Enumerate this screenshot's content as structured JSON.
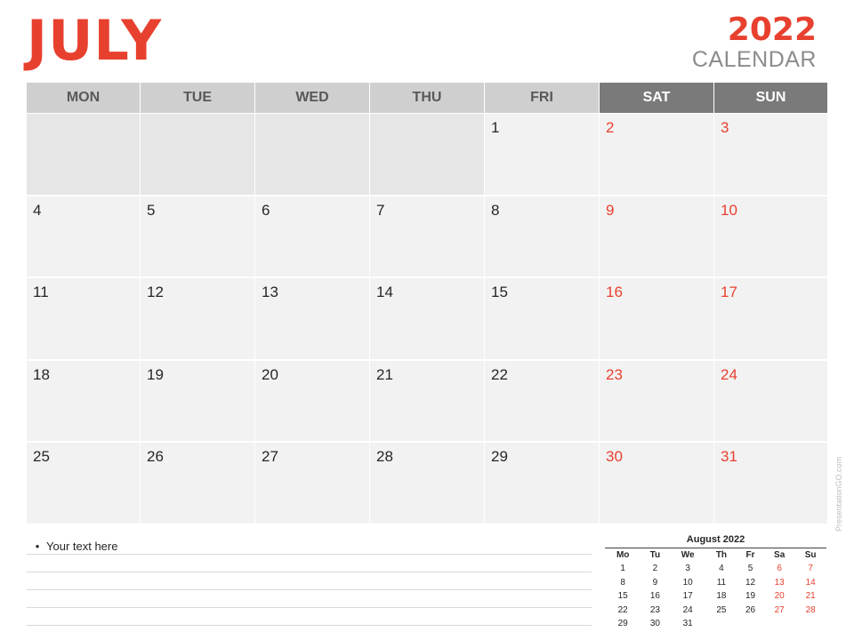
{
  "header": {
    "month": "JULY",
    "year": "2022",
    "subtitle": "CALENDAR"
  },
  "weekdays": [
    "MON",
    "TUE",
    "WED",
    "THU",
    "FRI",
    "SAT",
    "SUN"
  ],
  "weeks": [
    [
      "",
      "",
      "",
      "",
      "1",
      "2",
      "3"
    ],
    [
      "4",
      "5",
      "6",
      "7",
      "8",
      "9",
      "10"
    ],
    [
      "11",
      "12",
      "13",
      "14",
      "15",
      "16",
      "17"
    ],
    [
      "18",
      "19",
      "20",
      "21",
      "22",
      "23",
      "24"
    ],
    [
      "25",
      "26",
      "27",
      "28",
      "29",
      "30",
      "31"
    ]
  ],
  "notes": {
    "first_line": "Your text here"
  },
  "mini_calendar": {
    "title": "August 2022",
    "weekdays": [
      "Mo",
      "Tu",
      "We",
      "Th",
      "Fr",
      "Sa",
      "Su"
    ],
    "weeks": [
      [
        "1",
        "2",
        "3",
        "4",
        "5",
        "6",
        "7"
      ],
      [
        "8",
        "9",
        "10",
        "11",
        "12",
        "13",
        "14"
      ],
      [
        "15",
        "16",
        "17",
        "18",
        "19",
        "20",
        "21"
      ],
      [
        "22",
        "23",
        "24",
        "25",
        "26",
        "27",
        "28"
      ],
      [
        "29",
        "30",
        "31",
        "",
        "",
        "",
        ""
      ]
    ]
  },
  "watermark": "PresentationGO.com",
  "colors": {
    "accent": "#e8402f",
    "header_gray": "#d0cfcf",
    "weekend_header": "#7a7a7a",
    "cell": "#f2f2f2"
  }
}
